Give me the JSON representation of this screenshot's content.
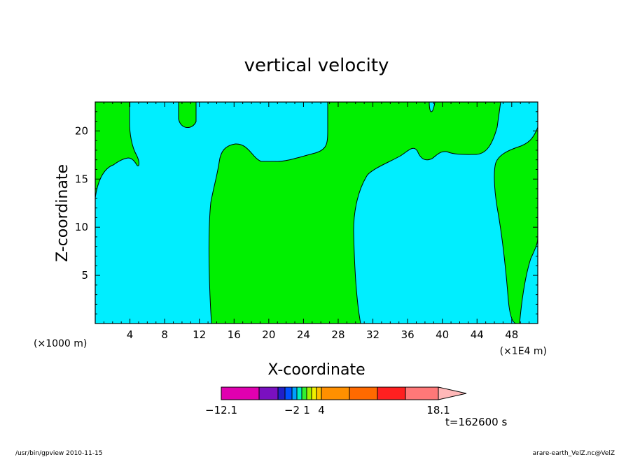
{
  "chart_data": {
    "type": "heatmap",
    "title": "vertical velocity",
    "xlabel": "X-coordinate",
    "ylabel": "Z-coordinate",
    "x_unit_left": "(×1000 m)",
    "x_unit_right": "(×1E4 m)",
    "xlim": [
      0,
      51
    ],
    "ylim": [
      0,
      23
    ],
    "x_ticks": [
      4,
      8,
      12,
      16,
      20,
      24,
      28,
      32,
      36,
      40,
      44,
      48
    ],
    "y_ticks": [
      5,
      10,
      15,
      20
    ],
    "regions": [
      {
        "name": "green",
        "color": "#00f000",
        "sign": "positive"
      },
      {
        "name": "cyan",
        "color": "#00eeff",
        "sign": "negative"
      }
    ],
    "colorbar": {
      "colors": [
        "#e000b0",
        "#7a10c0",
        "#2020c8",
        "#0050ff",
        "#00a0ff",
        "#00f0c0",
        "#30f030",
        "#a0f000",
        "#f0f000",
        "#ffc000",
        "#ff9000",
        "#ff6a00",
        "#ff2020",
        "#ff7878"
      ],
      "extend_color": "#ffb8b8",
      "labels": [
        {
          "text": "−12.1",
          "index": 0
        },
        {
          "text": "−2",
          "index": 4
        },
        {
          "text": "1",
          "index": 7
        },
        {
          "text": "4",
          "index": 10
        },
        {
          "text": "18.1",
          "index": 14
        }
      ]
    },
    "time_label": "t=162600 s"
  },
  "footer": {
    "left": "/usr/bin/gpview  2010-11-15",
    "right": "arare-earth_VelZ.nc@VelZ"
  }
}
